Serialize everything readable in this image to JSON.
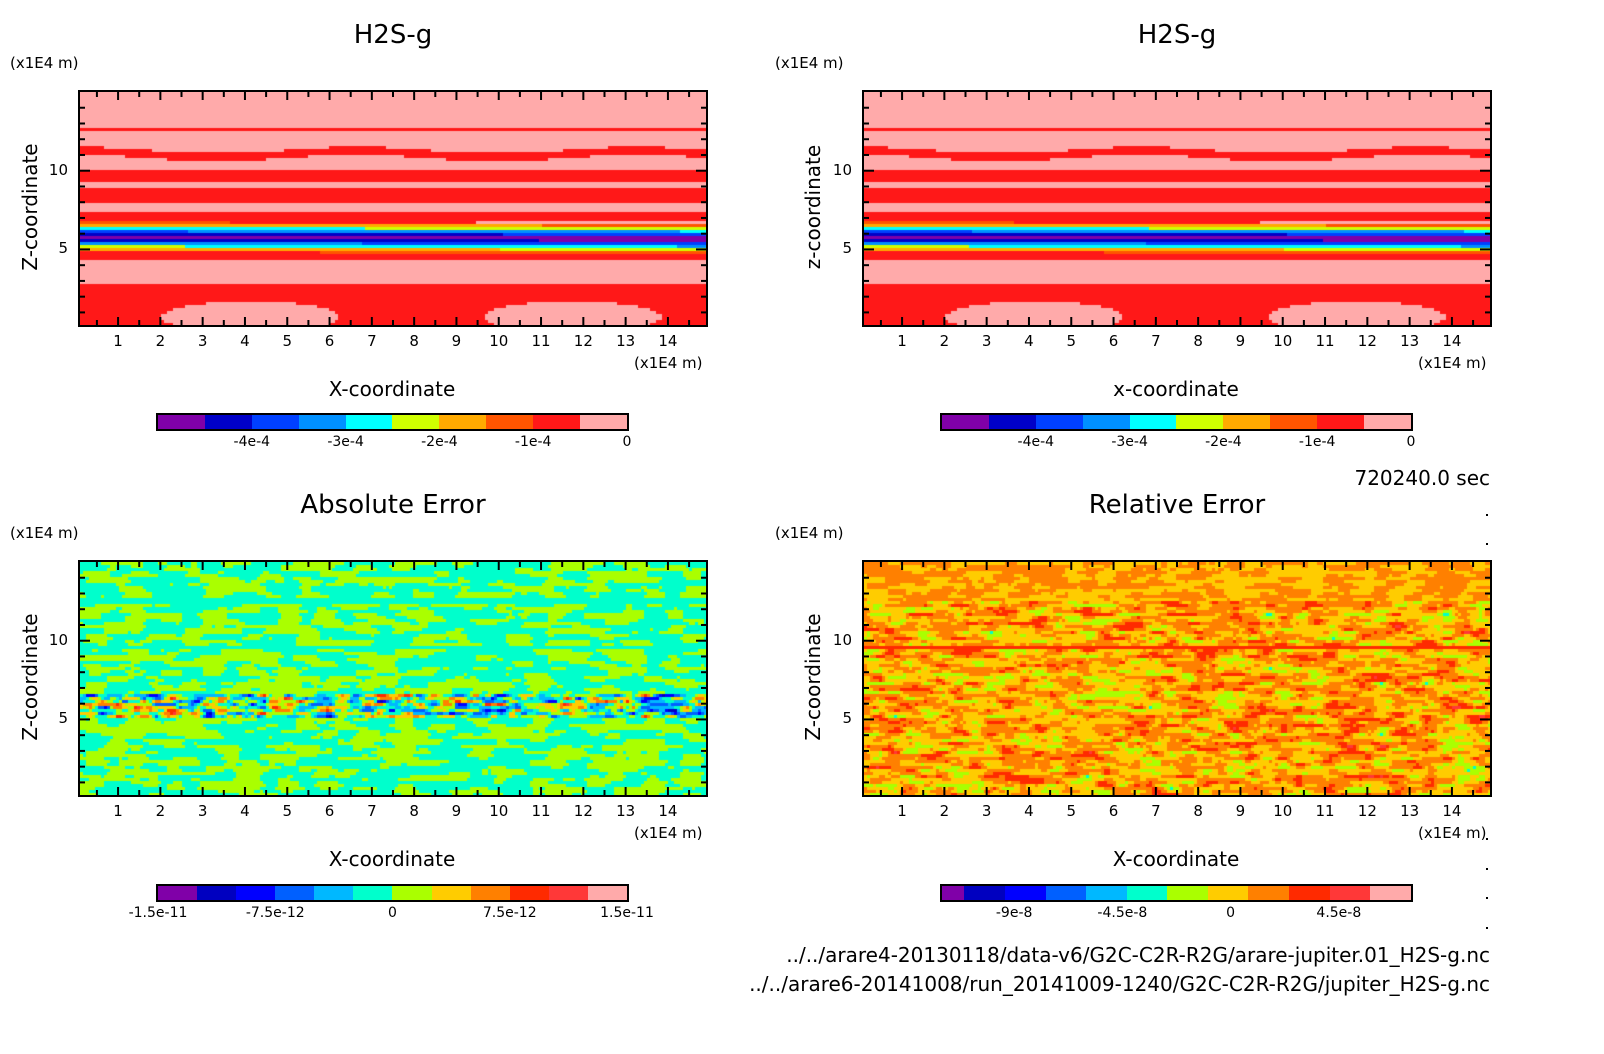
{
  "time_label": "720240.0 sec",
  "file_paths": [
    "../../arare4-20130118/data-v6/G2C-C2R-R2G/arare-jupiter.01_H2S-g.nc",
    "../../arare6-20141008/run_20141009-1240/G2C-C2R-R2G/jupiter_H2S-g.nc"
  ],
  "chart_data": [
    {
      "type": "heatmap",
      "id": "h2s-model-a",
      "title": "H2S-g",
      "xlabel": "X-coordinate",
      "ylabel": "Z-coordinate",
      "x_unit": "(x1E4 m)",
      "y_unit": "(x1E4 m)",
      "xlim": [
        0.1,
        14.9
      ],
      "ylim": [
        0.2,
        15.0
      ],
      "x_ticks": [
        "1",
        "2",
        "3",
        "4",
        "5",
        "6",
        "7",
        "8",
        "9",
        "10",
        "11",
        "12",
        "13",
        "14"
      ],
      "y_ticks": [
        "5",
        "10"
      ],
      "colorbar": {
        "colors": [
          "#8000a8",
          "#0000c8",
          "#0040ff",
          "#0090ff",
          "#00ffff",
          "#d0ff00",
          "#ffaa00",
          "#ff5500",
          "#ff1818",
          "#ffaaaa"
        ],
        "tick_labels": [
          "-4e-4",
          "-3e-4",
          "-2e-4",
          "-1e-4",
          "0"
        ],
        "range": [
          -0.0005,
          0
        ]
      },
      "field": "layered"
    },
    {
      "type": "heatmap",
      "id": "h2s-model-b",
      "title": "H2S-g",
      "xlabel": "x-coordinate",
      "ylabel": "z-coordinate",
      "x_unit": "(x1E4 m)",
      "y_unit": "(x1E4 m)",
      "xlim": [
        0.1,
        14.9
      ],
      "ylim": [
        0.2,
        15.0
      ],
      "x_ticks": [
        "1",
        "2",
        "3",
        "4",
        "5",
        "6",
        "7",
        "8",
        "9",
        "10",
        "11",
        "12",
        "13",
        "14"
      ],
      "y_ticks": [
        "5",
        "10"
      ],
      "colorbar": {
        "colors": [
          "#8000a8",
          "#0000c8",
          "#0040ff",
          "#0090ff",
          "#00ffff",
          "#d0ff00",
          "#ffaa00",
          "#ff5500",
          "#ff1818",
          "#ffaaaa"
        ],
        "tick_labels": [
          "-4e-4",
          "-3e-4",
          "-2e-4",
          "-1e-4",
          "0"
        ],
        "range": [
          -0.0005,
          0
        ]
      },
      "field": "layered"
    },
    {
      "type": "heatmap",
      "id": "absolute-error",
      "title": "Absolute Error",
      "xlabel": "X-coordinate",
      "ylabel": "Z-coordinate",
      "x_unit": "(x1E4 m)",
      "y_unit": "(x1E4 m)",
      "xlim": [
        0.1,
        14.9
      ],
      "ylim": [
        0.2,
        15.0
      ],
      "x_ticks": [
        "1",
        "2",
        "3",
        "4",
        "5",
        "6",
        "7",
        "8",
        "9",
        "10",
        "11",
        "12",
        "13",
        "14"
      ],
      "y_ticks": [
        "5",
        "10"
      ],
      "colorbar": {
        "colors": [
          "#8000a8",
          "#0000c0",
          "#0000ff",
          "#0060ff",
          "#00b8ff",
          "#00ffcc",
          "#aaff00",
          "#ffcc00",
          "#ff8000",
          "#ff2a00",
          "#ff3838",
          "#ffaaaa"
        ],
        "tick_labels": [
          "-1.5e-11",
          "-7.5e-12",
          "0",
          "7.5e-12",
          "1.5e-11"
        ],
        "range": [
          -1.5e-11,
          1.5e-11
        ]
      },
      "field": "noise-abs"
    },
    {
      "type": "heatmap",
      "id": "relative-error",
      "title": "Relative Error",
      "xlabel": "X-coordinate",
      "ylabel": "Z-coordinate",
      "x_unit": "(x1E4 m)",
      "y_unit": "(x1E4 m)",
      "xlim": [
        0.1,
        14.9
      ],
      "ylim": [
        0.2,
        15.0
      ],
      "x_ticks": [
        "1",
        "2",
        "3",
        "4",
        "5",
        "6",
        "7",
        "8",
        "9",
        "10",
        "11",
        "12",
        "13",
        "14"
      ],
      "y_ticks": [
        "5",
        "10"
      ],
      "colorbar": {
        "colors": [
          "#8000a8",
          "#0000c0",
          "#0000ff",
          "#0060ff",
          "#00b8ff",
          "#00ffcc",
          "#aaff00",
          "#ffcc00",
          "#ff8000",
          "#ff2a00",
          "#ff3838",
          "#ffaaaa"
        ],
        "tick_labels": [
          "-9e-8",
          "-4.5e-8",
          "0",
          "4.5e-8"
        ],
        "range": [
          -1.2e-07,
          7.5e-08
        ]
      },
      "field": "noise-rel"
    }
  ]
}
